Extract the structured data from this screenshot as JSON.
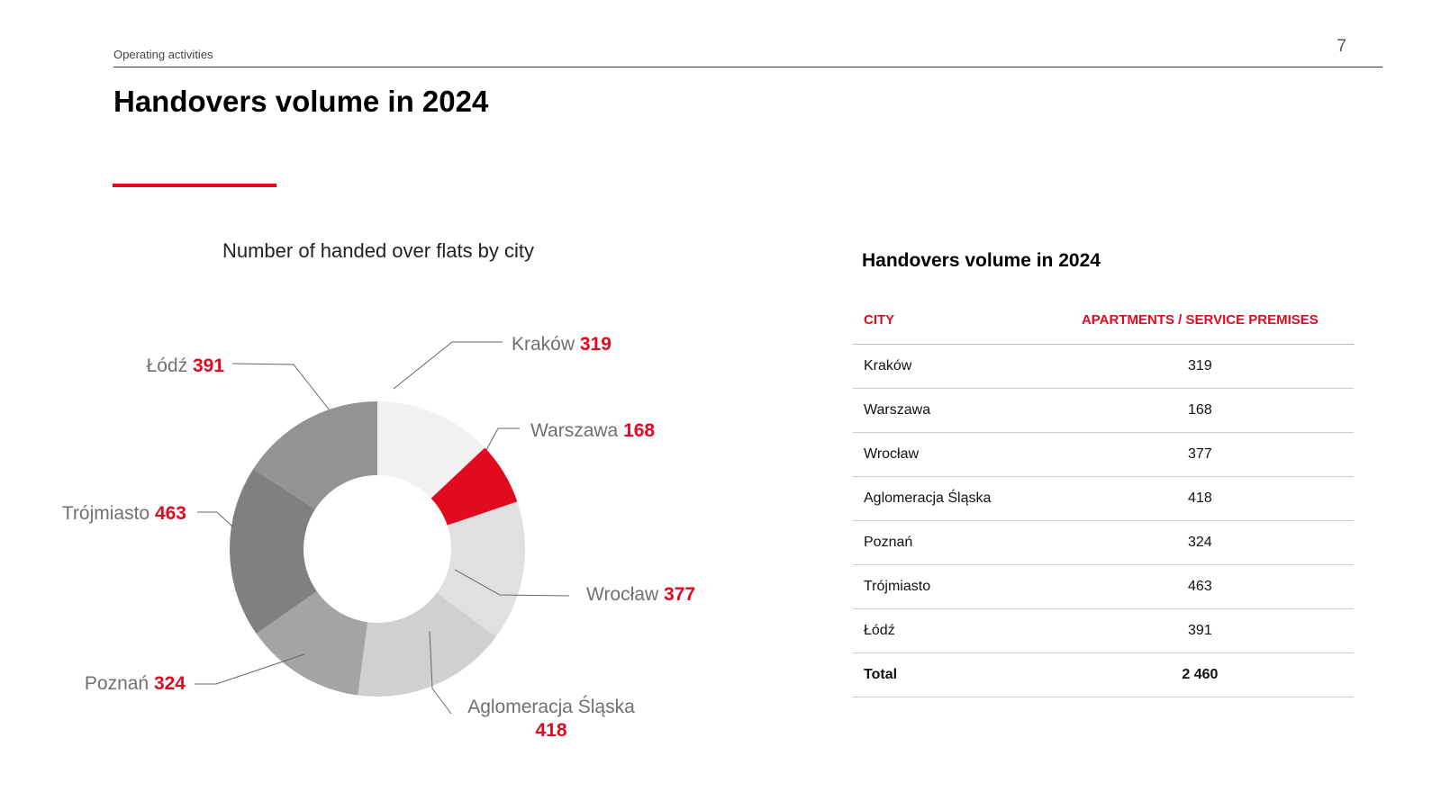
{
  "header": {
    "section": "Operating activities",
    "page_number": "7",
    "title": "Handovers volume in 2024"
  },
  "colors": {
    "accent": "#e20a1f",
    "highlight": "#e20a1f"
  },
  "chart_data": {
    "type": "pie",
    "variant": "donut",
    "title": "Number of handed over flats by city",
    "total": 2460,
    "slices": [
      {
        "label": "Kraków",
        "value": 319,
        "color": "#f2f2f2",
        "highlighted": false
      },
      {
        "label": "Warszawa",
        "value": 168,
        "color": "#e20a1f",
        "highlighted": true
      },
      {
        "label": "Wrocław",
        "value": 377,
        "color": "#e0e0e0",
        "highlighted": false
      },
      {
        "label": "Aglomeracja Śląska",
        "value": 418,
        "color": "#d0d0d0",
        "highlighted": false
      },
      {
        "label": "Poznań",
        "value": 324,
        "color": "#a4a4a4",
        "highlighted": false
      },
      {
        "label": "Trójmiasto",
        "value": 463,
        "color": "#808080",
        "highlighted": false
      },
      {
        "label": "Łódź",
        "value": 391,
        "color": "#939393",
        "highlighted": false
      }
    ]
  },
  "table": {
    "title": "Handovers volume in 2024",
    "headers": [
      "CITY",
      "APARTMENTS / SERVICE PREMISES"
    ],
    "rows": [
      [
        "Kraków",
        "319"
      ],
      [
        "Warszawa",
        "168"
      ],
      [
        "Wrocław",
        "377"
      ],
      [
        "Aglomeracja Śląska",
        "418"
      ],
      [
        "Poznań",
        "324"
      ],
      [
        "Trójmiasto",
        "463"
      ],
      [
        "Łódź",
        "391"
      ]
    ],
    "total": [
      "Total",
      "2 460"
    ]
  }
}
